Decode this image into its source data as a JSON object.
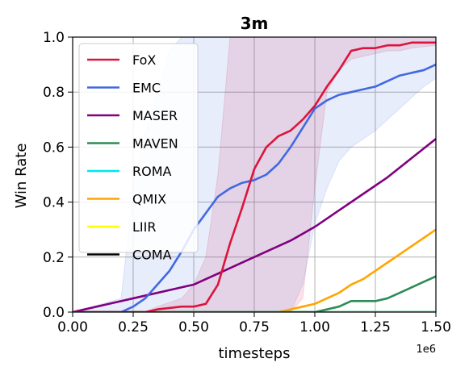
{
  "chart_data": {
    "type": "line",
    "title": "3m",
    "xlabel": "timesteps",
    "ylabel": "Win Rate",
    "x_exponent_label": "1e6",
    "xlim": [
      0,
      1.5
    ],
    "ylim": [
      0,
      1.0
    ],
    "xticks": [
      0.0,
      0.25,
      0.5,
      0.75,
      1.0,
      1.25,
      1.5
    ],
    "xtick_labels": [
      "0.00",
      "0.25",
      "0.50",
      "0.75",
      "1.00",
      "1.25",
      "1.50"
    ],
    "yticks": [
      0.0,
      0.2,
      0.4,
      0.6,
      0.8,
      1.0
    ],
    "ytick_labels": [
      "0.0",
      "0.2",
      "0.4",
      "0.6",
      "0.8",
      "1.0"
    ],
    "grid": true,
    "legend_position": "upper-left",
    "series": [
      {
        "name": "FoX",
        "color": "#dc143c",
        "x": [
          0,
          0.3,
          0.35,
          0.45,
          0.5,
          0.55,
          0.6,
          0.65,
          0.7,
          0.75,
          0.8,
          0.85,
          0.9,
          0.95,
          1.0,
          1.05,
          1.1,
          1.15,
          1.2,
          1.25,
          1.3,
          1.35,
          1.4,
          1.5
        ],
        "y": [
          0,
          0.0,
          0.01,
          0.02,
          0.02,
          0.03,
          0.1,
          0.25,
          0.38,
          0.52,
          0.6,
          0.64,
          0.66,
          0.7,
          0.75,
          0.82,
          0.88,
          0.95,
          0.96,
          0.96,
          0.97,
          0.97,
          0.98,
          0.98
        ],
        "band_lower": [
          0,
          0,
          0,
          0,
          0,
          0,
          0,
          0,
          0,
          0,
          0,
          0,
          0,
          0.05,
          0.45,
          0.8,
          0.88,
          0.92,
          0.93,
          0.94,
          0.95,
          0.95,
          0.96,
          0.97
        ],
        "band_upper": [
          0,
          0,
          0.02,
          0.05,
          0.1,
          0.2,
          0.5,
          1.0,
          1.0,
          1.0,
          1.0,
          1.0,
          1.0,
          1.0,
          1.0,
          1.0,
          1.0,
          1.0,
          1.0,
          1.0,
          1.0,
          1.0,
          1.0,
          1.0
        ]
      },
      {
        "name": "EMC",
        "color": "#4169e1",
        "x": [
          0,
          0.2,
          0.25,
          0.3,
          0.35,
          0.4,
          0.45,
          0.5,
          0.55,
          0.6,
          0.65,
          0.7,
          0.75,
          0.8,
          0.85,
          0.9,
          0.95,
          1.0,
          1.05,
          1.1,
          1.15,
          1.2,
          1.25,
          1.3,
          1.35,
          1.4,
          1.45,
          1.5
        ],
        "y": [
          0,
          0.0,
          0.02,
          0.05,
          0.1,
          0.15,
          0.22,
          0.3,
          0.36,
          0.42,
          0.45,
          0.47,
          0.48,
          0.5,
          0.54,
          0.6,
          0.67,
          0.74,
          0.77,
          0.79,
          0.8,
          0.81,
          0.82,
          0.84,
          0.86,
          0.87,
          0.88,
          0.9
        ],
        "band_lower": [
          0,
          0,
          0,
          0,
          0,
          0,
          0,
          0,
          0,
          0,
          0,
          0,
          0,
          0,
          0,
          0,
          0.1,
          0.32,
          0.45,
          0.55,
          0.6,
          0.63,
          0.66,
          0.7,
          0.74,
          0.78,
          0.82,
          0.85
        ],
        "band_upper": [
          0,
          0.05,
          0.45,
          0.65,
          0.8,
          0.95,
          1.0,
          1.0,
          1.0,
          1.0,
          1.0,
          1.0,
          1.0,
          1.0,
          1.0,
          1.0,
          1.0,
          1.0,
          1.0,
          1.0,
          1.0,
          1.0,
          1.0,
          1.0,
          1.0,
          1.0,
          1.0,
          1.0
        ]
      },
      {
        "name": "MASER",
        "color": "#800080",
        "x": [
          0,
          0.25,
          0.5,
          0.6,
          0.7,
          0.8,
          0.9,
          1.0,
          1.1,
          1.2,
          1.3,
          1.4,
          1.5
        ],
        "y": [
          0,
          0.05,
          0.1,
          0.14,
          0.18,
          0.22,
          0.26,
          0.31,
          0.37,
          0.43,
          0.49,
          0.56,
          0.63
        ]
      },
      {
        "name": "MAVEN",
        "color": "#2e8b57",
        "x": [
          0,
          1.0,
          1.05,
          1.1,
          1.15,
          1.2,
          1.25,
          1.3,
          1.35,
          1.4,
          1.45,
          1.5
        ],
        "y": [
          0,
          0.0,
          0.01,
          0.02,
          0.04,
          0.04,
          0.04,
          0.05,
          0.07,
          0.09,
          0.11,
          0.13
        ]
      },
      {
        "name": "ROMA",
        "color": "#00e5ee",
        "x": [
          0,
          1.5
        ],
        "y": [
          0,
          0
        ]
      },
      {
        "name": "QMIX",
        "color": "#ffa500",
        "x": [
          0,
          0.8,
          0.85,
          0.9,
          0.95,
          1.0,
          1.05,
          1.1,
          1.15,
          1.2,
          1.25,
          1.3,
          1.35,
          1.4,
          1.45,
          1.5
        ],
        "y": [
          0,
          0.0,
          0.0,
          0.01,
          0.02,
          0.03,
          0.05,
          0.07,
          0.1,
          0.12,
          0.15,
          0.18,
          0.21,
          0.24,
          0.27,
          0.3
        ]
      },
      {
        "name": "LIIR",
        "color": "#ffff00",
        "x": [
          0,
          1.5
        ],
        "y": [
          0,
          0
        ]
      },
      {
        "name": "COMA",
        "color": "#000000",
        "x": [
          0,
          1.5
        ],
        "y": [
          0,
          0
        ]
      }
    ]
  }
}
